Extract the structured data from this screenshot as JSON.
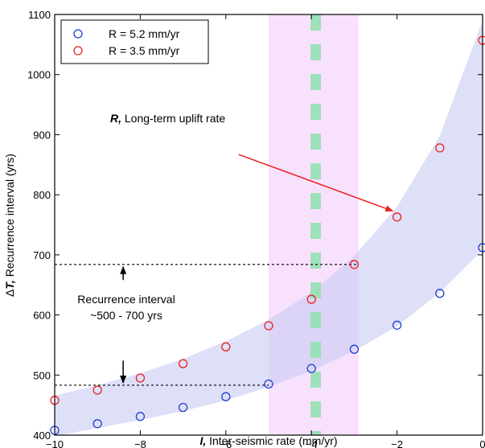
{
  "chart_data": {
    "type": "scatter",
    "xlabel_bold": "I,",
    "xlabel_rest": " Inter-seismic rate (mm/yr)",
    "ylabel_prefix": "Δ",
    "ylabel_bold": "T,",
    "ylabel_rest": " Recurrence interval (yrs)",
    "xlim": [
      -10,
      0
    ],
    "ylim": [
      400,
      1100
    ],
    "xticks": [
      -10,
      -8,
      -6,
      -4,
      -2,
      0
    ],
    "yticks": [
      400,
      500,
      600,
      700,
      800,
      900,
      1000,
      1100
    ],
    "x_tick_labels": [
      "−10",
      "−8",
      "−6",
      "−4",
      "−2",
      "0"
    ],
    "y_tick_labels": [
      "400",
      "500",
      "600",
      "700",
      "800",
      "900",
      "1000",
      "1100"
    ],
    "x": [
      -10,
      -9,
      -8,
      -7,
      -6,
      -5,
      -4,
      -3,
      -2,
      -1,
      0
    ],
    "series": [
      {
        "name": "R = 5.2 mm/yr",
        "color": "#1f3fcf",
        "values": [
          408,
          419,
          431,
          446,
          464,
          485,
          511,
          543,
          583,
          636,
          712
        ]
      },
      {
        "name": "R = 3.5 mm/yr",
        "color": "#e8201e",
        "values": [
          458,
          475,
          495,
          519,
          547,
          582,
          626,
          684,
          763,
          878,
          1057
        ]
      }
    ],
    "band": {
      "color": "#c8ccf2",
      "x": [
        -10,
        -9,
        -8,
        -7,
        -6,
        -5,
        -4,
        -3,
        -2,
        -1,
        0
      ],
      "lower": [
        398,
        412,
        425,
        440,
        458,
        480,
        507,
        540,
        581,
        637,
        708
      ],
      "upper": [
        466,
        483,
        503,
        527,
        556,
        592,
        638,
        698,
        780,
        898,
        1090
      ]
    },
    "pink_region": {
      "x": [
        -5,
        -2.9
      ],
      "color": "#f7dcfb"
    },
    "green_line": {
      "x": -3.9,
      "color": "#8fe0ae"
    },
    "hlines": [
      {
        "y": 684,
        "x": [
          -10,
          -2.9
        ]
      },
      {
        "y": 483,
        "x": [
          -10,
          -5
        ]
      }
    ],
    "annotations": {
      "arrow_label_bold": "R,",
      "arrow_label_rest": " Long-term uplift rate",
      "arrow_from": [
        -5.7,
        867
      ],
      "arrow_to": [
        -2.1,
        773
      ],
      "arrow_color": "#e8201e",
      "interval_line1": "Recurrence interval",
      "interval_line2": "~500 - 700 yrs",
      "up_arrow": {
        "x": -8.4,
        "from": 658,
        "to": 680
      },
      "down_arrow": {
        "x": -8.4,
        "from": 524,
        "to": 487
      }
    },
    "legend_position": "top-left",
    "grid": false
  }
}
